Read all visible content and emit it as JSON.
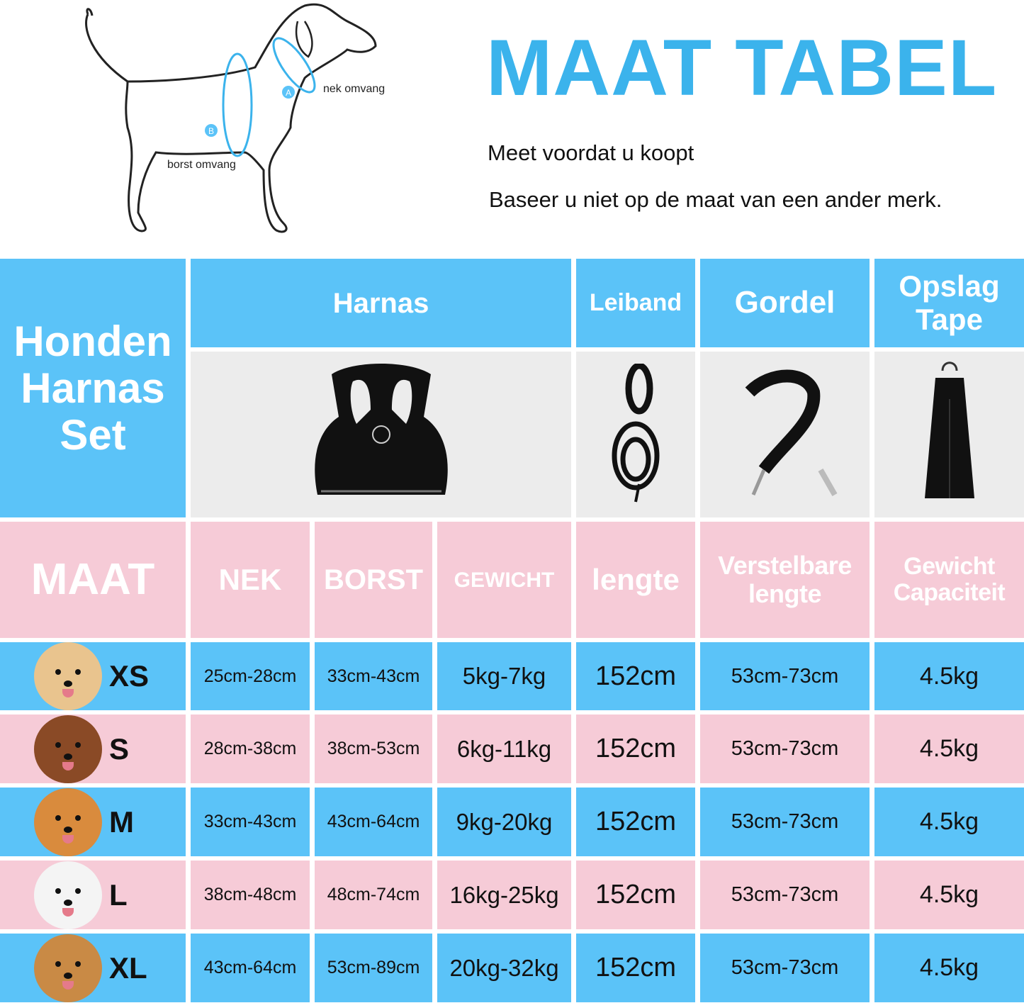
{
  "header": {
    "title": "MAAT TABEL",
    "subtitle1": "Meet voordat u koopt",
    "subtitle2": "Baseer u niet op de maat van een ander merk."
  },
  "diagram": {
    "label_a": "A",
    "label_b": "B",
    "neck_label": "nek omvang",
    "chest_label": "borst omvang"
  },
  "table": {
    "set_title": "Honden Harnas Set",
    "groups": [
      {
        "label": "Harnas"
      },
      {
        "label": "Leiband"
      },
      {
        "label": "Gordel"
      },
      {
        "label": "Opslag Tape"
      }
    ],
    "columns": [
      "MAAT",
      "NEK",
      "BORST",
      "GEWICHT",
      "lengte",
      "Verstelbare lengte",
      "Gewicht Capaciteit"
    ],
    "rows": [
      {
        "size": "XS",
        "nek": "25cm-28cm",
        "borst": "33cm-43cm",
        "gewicht": "5kg-7kg",
        "lengte": "152cm",
        "verstelbaar": "53cm-73cm",
        "capaciteit": "4.5kg",
        "avatar": "#e9c48e"
      },
      {
        "size": "S",
        "nek": "28cm-38cm",
        "borst": "38cm-53cm",
        "gewicht": "6kg-11kg",
        "lengte": "152cm",
        "verstelbaar": "53cm-73cm",
        "capaciteit": "4.5kg",
        "avatar": "#8a4a26"
      },
      {
        "size": "M",
        "nek": "33cm-43cm",
        "borst": "43cm-64cm",
        "gewicht": "9kg-20kg",
        "lengte": "152cm",
        "verstelbaar": "53cm-73cm",
        "capaciteit": "4.5kg",
        "avatar": "#d98b3d"
      },
      {
        "size": "L",
        "nek": "38cm-48cm",
        "borst": "48cm-74cm",
        "gewicht": "16kg-25kg",
        "lengte": "152cm",
        "verstelbaar": "53cm-73cm",
        "capaciteit": "4.5kg",
        "avatar": "#f4f4f4"
      },
      {
        "size": "XL",
        "nek": "43cm-64cm",
        "borst": "53cm-89cm",
        "gewicht": "20kg-32kg",
        "lengte": "152cm",
        "verstelbaar": "53cm-73cm",
        "capaciteit": "4.5kg",
        "avatar": "#c98a45"
      }
    ]
  },
  "colors": {
    "blue": "#5bc3f8",
    "pink": "#f6cbd7",
    "title": "#3bb3ec"
  }
}
